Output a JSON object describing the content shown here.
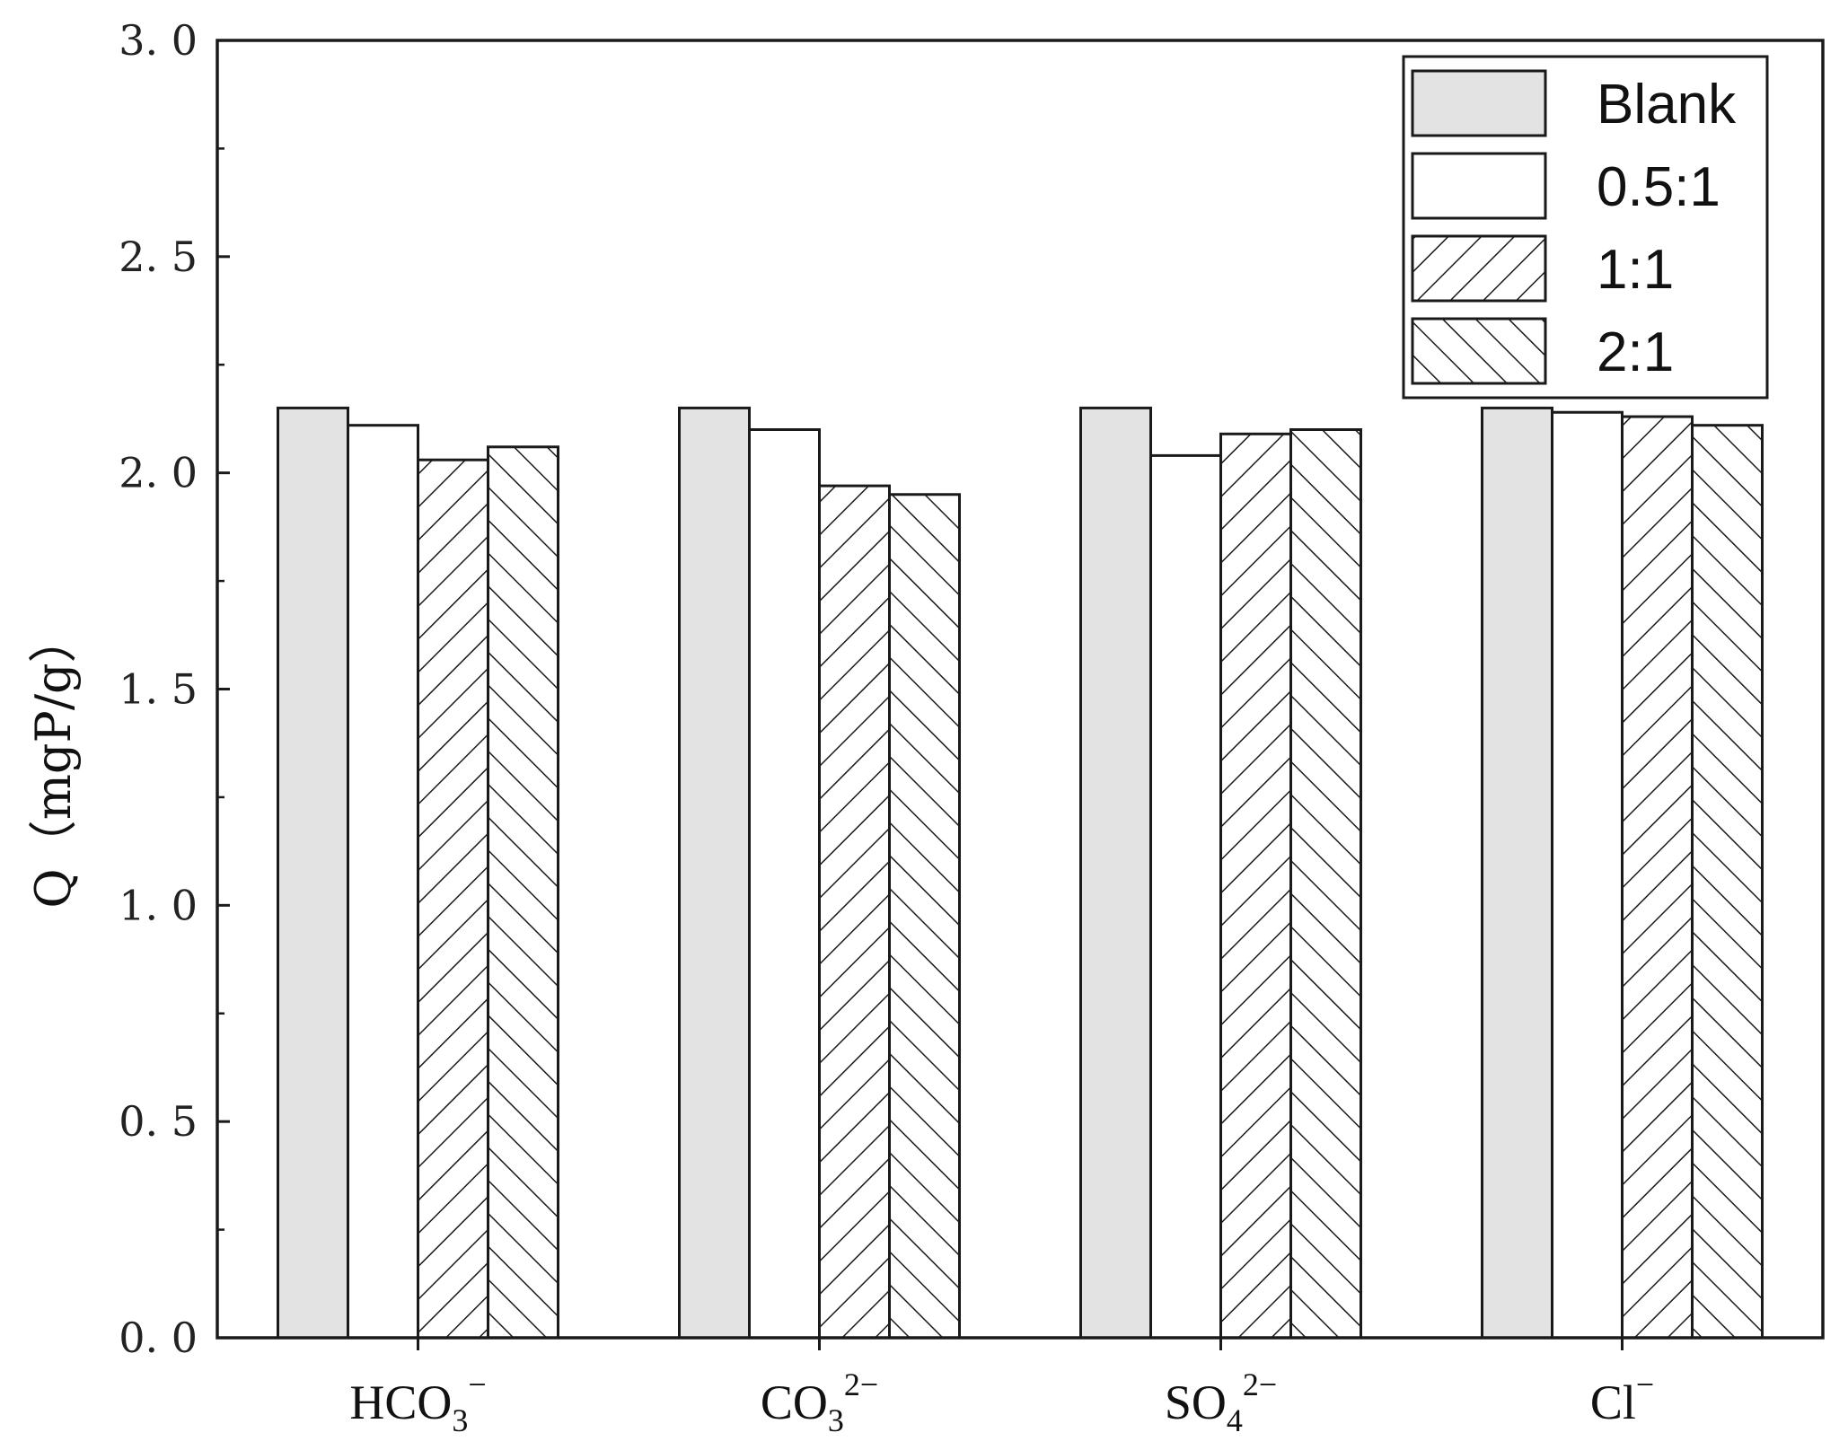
{
  "chart_data": {
    "type": "bar",
    "title": "",
    "xlabel": "",
    "ylabel": "Q（mgP/g）",
    "ylim": [
      0,
      3.0
    ],
    "yticks": [
      "0. 0",
      "0. 5",
      "1. 0",
      "1. 5",
      "2. 0",
      "2. 5",
      "3. 0"
    ],
    "ytick_values": [
      0,
      0.5,
      1.0,
      1.5,
      2.0,
      2.5,
      3.0
    ],
    "categories": [
      {
        "base": "HCO",
        "sub": "3",
        "sup": "−"
      },
      {
        "base": "CO",
        "sub": "3",
        "sup": "2−"
      },
      {
        "base": "SO",
        "sub": "4",
        "sup": "2−"
      },
      {
        "base": "Cl",
        "sub": "",
        "sup": "−"
      }
    ],
    "series": [
      {
        "name": "Blank",
        "pattern": "solid-gray",
        "values": [
          2.15,
          2.15,
          2.15,
          2.15
        ]
      },
      {
        "name": "0.5:1",
        "pattern": "empty",
        "values": [
          2.11,
          2.1,
          2.04,
          2.14
        ]
      },
      {
        "name": "1:1",
        "pattern": "forward-hatch",
        "values": [
          2.03,
          1.97,
          2.09,
          2.13
        ]
      },
      {
        "name": "2:1",
        "pattern": "backward-hatch",
        "values": [
          2.06,
          1.95,
          2.1,
          2.11
        ]
      }
    ],
    "grid": false,
    "legend_position": "top-right"
  },
  "colors": {
    "blank_fill": "#e3e3e3",
    "stroke": "#1a1a1a",
    "background": "#ffffff"
  }
}
